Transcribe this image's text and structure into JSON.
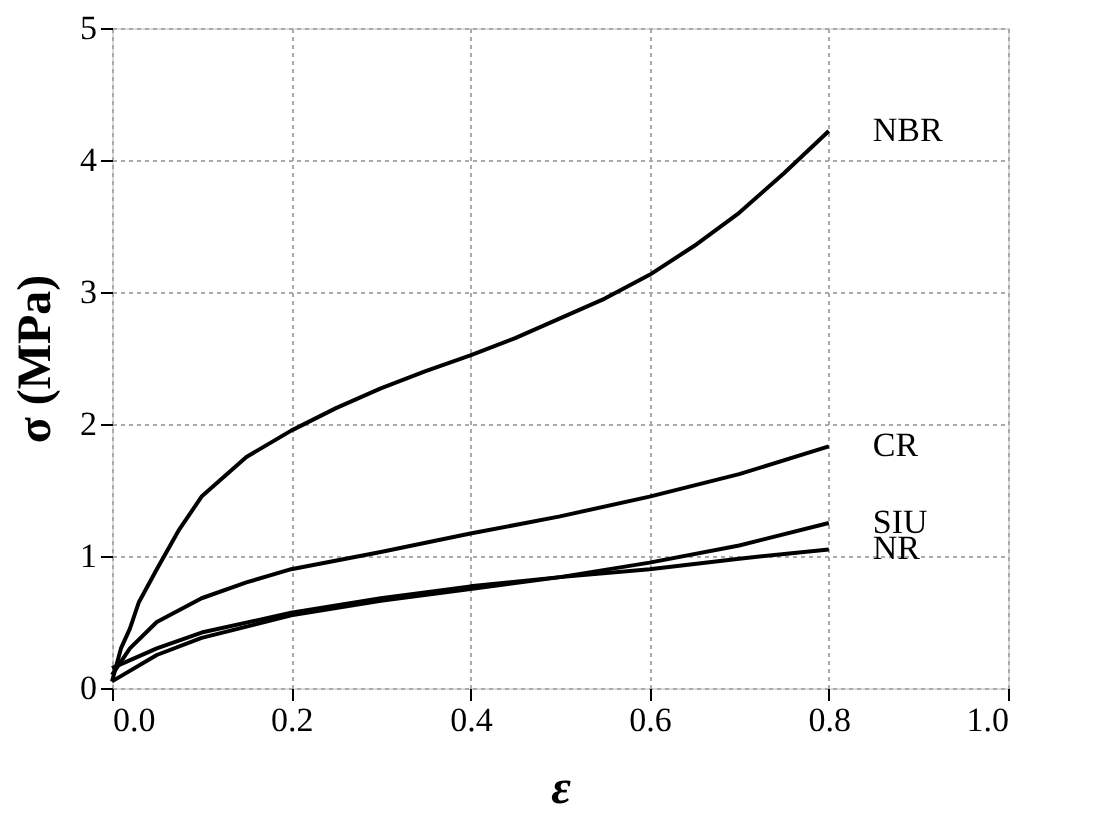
{
  "chart_data": {
    "type": "line",
    "xlabel": "ε",
    "ylabel": "σ (MPa)",
    "xlim": [
      0,
      1
    ],
    "xticks": [
      {
        "value": 0,
        "label": "0.0"
      },
      0.2,
      0.4,
      0.6,
      0.8,
      {
        "value": 1,
        "label": "1.0"
      }
    ],
    "ylim": [
      0,
      5
    ],
    "yticks": [
      0,
      1,
      2,
      3,
      4,
      5
    ],
    "grid": true,
    "legend": false,
    "line_style": "solid",
    "series": [
      {
        "name": "NBR",
        "color": "#000000",
        "x": [
          0,
          0.01,
          0.02,
          0.03,
          0.05,
          0.075,
          0.1,
          0.15,
          0.2,
          0.25,
          0.3,
          0.35,
          0.4,
          0.45,
          0.5,
          0.55,
          0.6,
          0.65,
          0.7,
          0.75,
          0.8
        ],
        "values": [
          0.05,
          0.3,
          0.45,
          0.65,
          0.9,
          1.2,
          1.45,
          1.75,
          1.95,
          2.12,
          2.27,
          2.4,
          2.52,
          2.65,
          2.8,
          2.95,
          3.13,
          3.35,
          3.6,
          3.9,
          4.22
        ]
      },
      {
        "name": "CR",
        "color": "#000000",
        "x": [
          0,
          0.02,
          0.05,
          0.1,
          0.15,
          0.2,
          0.3,
          0.4,
          0.5,
          0.6,
          0.7,
          0.8
        ],
        "values": [
          0.1,
          0.3,
          0.5,
          0.68,
          0.8,
          0.9,
          1.03,
          1.17,
          1.3,
          1.45,
          1.62,
          1.83
        ]
      },
      {
        "name": "SIU",
        "color": "#000000",
        "x": [
          0,
          0.05,
          0.1,
          0.2,
          0.3,
          0.4,
          0.5,
          0.6,
          0.7,
          0.8
        ],
        "values": [
          0.05,
          0.25,
          0.38,
          0.55,
          0.66,
          0.75,
          0.84,
          0.95,
          1.08,
          1.25
        ]
      },
      {
        "name": "NR",
        "color": "#000000",
        "x": [
          0,
          0.05,
          0.1,
          0.2,
          0.3,
          0.4,
          0.5,
          0.6,
          0.7,
          0.8
        ],
        "values": [
          0.15,
          0.3,
          0.42,
          0.57,
          0.68,
          0.77,
          0.84,
          0.9,
          0.98,
          1.05
        ]
      }
    ]
  }
}
